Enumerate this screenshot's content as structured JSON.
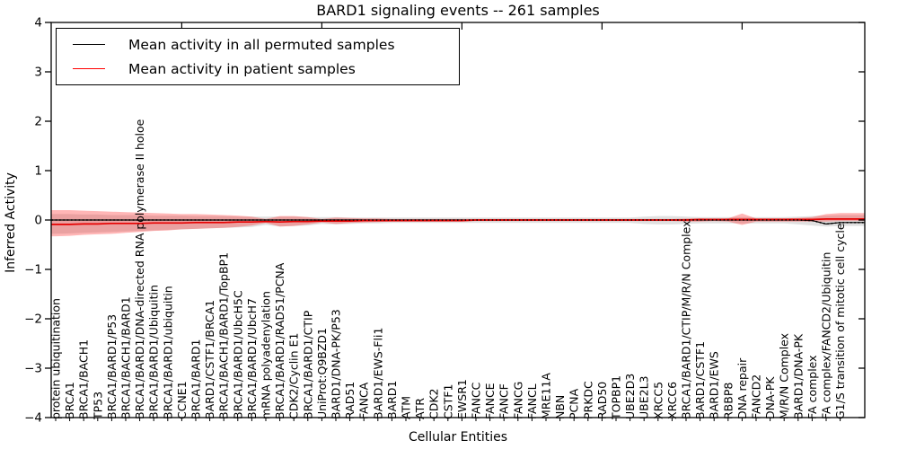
{
  "chart_data": {
    "type": "line",
    "title": "BARD1 signaling events -- 261 samples",
    "xlabel": "Cellular Entities",
    "ylabel": "Inferred Activity",
    "ylim": [
      -4,
      4
    ],
    "grid": false,
    "legend_position": "upper left",
    "ytick_values": [
      4,
      3,
      2,
      1,
      0,
      -1,
      -2,
      -3,
      -4
    ],
    "ytick_labels": [
      "4",
      "3",
      "2",
      "1",
      "0",
      "−1",
      "−2",
      "−3",
      "−4"
    ],
    "categories": [
      "protein ubiquitination",
      "BRCA1",
      "BRCA1/BACH1",
      "TP53",
      "BRCA1/BARD1/P53",
      "BRCA1/BACH1/BARD1",
      "BRCA1/BARD1/DNA-directed RNA polymerase II holoe",
      "BRCA1/BARD1/Ubiquitin",
      "BRCA1/BARD1/ubiquitin",
      "CCNE1",
      "BRCA1/BARD1",
      "BARD1/CSTF1/BRCA1",
      "BRCA1/BACH1/BARD1/TopBP1",
      "BRCA1/BARD1/UbcH5C",
      "BRCA1/BARD1/UbcH7",
      "mRNA polyadenylation",
      "BRCA1/BARD1/RAD51/PCNA",
      "CDK2/Cyclin E1",
      "BRCA1/BARD1/CTIP",
      "UniProt:Q9BZD1",
      "BARD1/DNA-PK/P53",
      "RAD51",
      "FANCA",
      "BARD1/EWS-Fli1",
      "BARD1",
      "ATM",
      "ATR",
      "CDK2",
      "CSTF1",
      "EWSR1",
      "FANCC",
      "FANCE",
      "FANCF",
      "FANCG",
      "FANCL",
      "MRE11A",
      "NBN",
      "PCNA",
      "PRKDC",
      "RAD50",
      "TOPBP1",
      "UBE2D3",
      "UBE2L3",
      "XRCC5",
      "XRCC6",
      "BRCA1/BARD1/CTIP/M/R/N Complex",
      "BARD1/CSTF1",
      "BARD1/EWS",
      "RBBP8",
      "DNA repair",
      "FANCD2",
      "DNA-PK",
      "M/R/N Complex",
      "BARD1/DNA-PK",
      "FA complex",
      "FA complex/FANCD2/Ubiquitin",
      "G1/S transition of mitotic cell cycle"
    ],
    "series": [
      {
        "name": "Mean activity in all permuted samples",
        "color": "#000000",
        "band_color": "#999999",
        "mean": [
          0,
          0,
          0,
          0,
          0,
          0,
          0,
          0,
          0,
          0,
          0,
          0,
          0,
          0,
          0,
          0,
          0,
          0,
          0,
          0,
          0,
          0,
          0,
          0,
          0,
          0,
          0,
          0,
          0,
          0,
          0,
          0,
          0,
          0,
          0,
          0,
          0,
          0,
          0,
          0,
          0,
          0,
          0,
          0,
          0,
          0,
          0,
          0,
          0,
          0,
          0,
          0,
          0,
          0,
          -0.01,
          -0.08,
          -0.05
        ],
        "upper": [
          0.12,
          0.12,
          0.11,
          0.11,
          0.1,
          0.1,
          0.1,
          0.09,
          0.09,
          0.09,
          0.08,
          0.08,
          0.08,
          0.07,
          0.07,
          0.07,
          0.07,
          0.07,
          0.06,
          0.06,
          0.06,
          0.05,
          0.05,
          0.05,
          0.05,
          0.05,
          0.05,
          0.05,
          0.05,
          0.05,
          0.05,
          0.05,
          0.05,
          0.05,
          0.05,
          0.05,
          0.05,
          0.05,
          0.05,
          0.05,
          0.05,
          0.05,
          0.07,
          0.08,
          0.08,
          0.07,
          0.06,
          0.06,
          0.06,
          0.06,
          0.06,
          0.06,
          0.06,
          0.07,
          0.08,
          0.09,
          0.1
        ],
        "lower": [
          -0.28,
          -0.27,
          -0.26,
          -0.25,
          -0.24,
          -0.23,
          -0.22,
          -0.21,
          -0.2,
          -0.19,
          -0.18,
          -0.17,
          -0.16,
          -0.15,
          -0.14,
          -0.1,
          -0.13,
          -0.12,
          -0.11,
          -0.08,
          -0.09,
          -0.08,
          -0.07,
          -0.07,
          -0.06,
          -0.06,
          -0.06,
          -0.06,
          -0.06,
          -0.06,
          -0.06,
          -0.06,
          -0.06,
          -0.06,
          -0.06,
          -0.06,
          -0.06,
          -0.06,
          -0.06,
          -0.06,
          -0.06,
          -0.06,
          -0.08,
          -0.09,
          -0.09,
          -0.08,
          -0.07,
          -0.07,
          -0.07,
          -0.07,
          -0.07,
          -0.07,
          -0.07,
          -0.09,
          -0.11,
          -0.13,
          -0.12
        ]
      },
      {
        "name": "Mean activity in patient samples",
        "color": "#ff0000",
        "band_color": "#ff2222",
        "mean": [
          -0.09,
          -0.09,
          -0.08,
          -0.08,
          -0.07,
          -0.07,
          -0.07,
          -0.06,
          -0.06,
          -0.06,
          -0.05,
          -0.05,
          -0.05,
          -0.04,
          -0.04,
          -0.03,
          -0.04,
          -0.03,
          -0.03,
          -0.02,
          -0.02,
          -0.02,
          -0.01,
          -0.01,
          -0.01,
          -0.01,
          -0.01,
          -0.01,
          -0.01,
          -0.01,
          0,
          0,
          0,
          0,
          0,
          0,
          0,
          0,
          0,
          0,
          0,
          0,
          0,
          0,
          0,
          0,
          0.01,
          0.01,
          0.01,
          0.01,
          0.01,
          0.01,
          0.01,
          0.01,
          0.01,
          0.02,
          0.02
        ],
        "upper": [
          0.2,
          0.2,
          0.19,
          0.18,
          0.17,
          0.16,
          0.15,
          0.14,
          0.13,
          0.12,
          0.12,
          0.11,
          0.1,
          0.09,
          0.07,
          0.02,
          0.08,
          0.08,
          0.06,
          0.02,
          0.05,
          0.04,
          0.03,
          0.03,
          0.02,
          0.02,
          0.02,
          0.02,
          0.02,
          0.02,
          0.02,
          0.02,
          0.02,
          0.02,
          0.02,
          0.02,
          0.02,
          0.02,
          0.02,
          0.02,
          0.02,
          0.02,
          0.02,
          0.02,
          0.02,
          0.03,
          0.03,
          0.02,
          0.03,
          0.13,
          0.03,
          0.03,
          0.03,
          0.04,
          0.06,
          0.12,
          0.14
        ],
        "lower": [
          -0.33,
          -0.32,
          -0.3,
          -0.29,
          -0.28,
          -0.26,
          -0.24,
          -0.22,
          -0.21,
          -0.19,
          -0.18,
          -0.17,
          -0.16,
          -0.14,
          -0.11,
          -0.06,
          -0.13,
          -0.12,
          -0.09,
          -0.05,
          -0.08,
          -0.06,
          -0.05,
          -0.04,
          -0.03,
          -0.03,
          -0.03,
          -0.03,
          -0.03,
          -0.03,
          -0.02,
          -0.02,
          -0.02,
          -0.02,
          -0.02,
          -0.02,
          -0.02,
          -0.02,
          -0.02,
          -0.02,
          -0.02,
          -0.02,
          -0.02,
          -0.02,
          -0.02,
          -0.03,
          -0.03,
          -0.02,
          -0.03,
          -0.1,
          -0.03,
          -0.03,
          -0.03,
          -0.03,
          -0.03,
          -0.03,
          -0.02
        ]
      }
    ]
  }
}
